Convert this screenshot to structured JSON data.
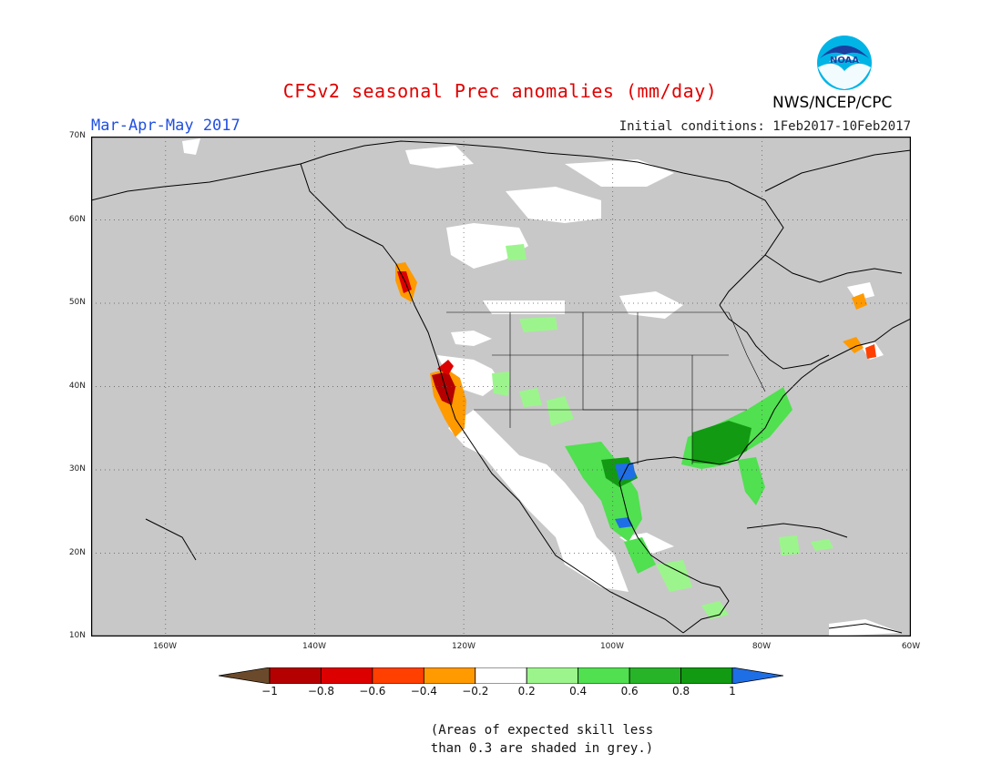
{
  "header": {
    "title": "CFSv2 seasonal Prec anomalies (mm/day)",
    "season": "Mar-Apr-May 2017",
    "initial_conditions": "Initial conditions: 1Feb2017-10Feb2017",
    "agency": "NWS/NCEP/CPC",
    "logo_text": "NOAA"
  },
  "map": {
    "lat_labels": [
      "70N",
      "60N",
      "50N",
      "40N",
      "30N",
      "20N",
      "10N"
    ],
    "lon_labels": [
      "160W",
      "140W",
      "120W",
      "100W",
      "80W",
      "60W"
    ],
    "lat_range": [
      10,
      70
    ],
    "lon_range": [
      -170,
      -60
    ],
    "grey_color": "#c8c8c8",
    "land_outline_color": "#000000"
  },
  "legend": {
    "levels": [
      "-1",
      "-0.8",
      "-0.6",
      "-0.4",
      "-0.2",
      "0.2",
      "0.4",
      "0.6",
      "0.8",
      "1"
    ],
    "colors": [
      "#6b4a2b",
      "#b40000",
      "#dc0000",
      "#ff4000",
      "#ff9a00",
      "#ffffff",
      "#9cf58c",
      "#50e050",
      "#28b428",
      "#129a12",
      "#1e6ee6"
    ]
  },
  "note": {
    "line1": "(Areas of expected skill less",
    "line2": "than 0.3 are shaded in grey.)"
  }
}
